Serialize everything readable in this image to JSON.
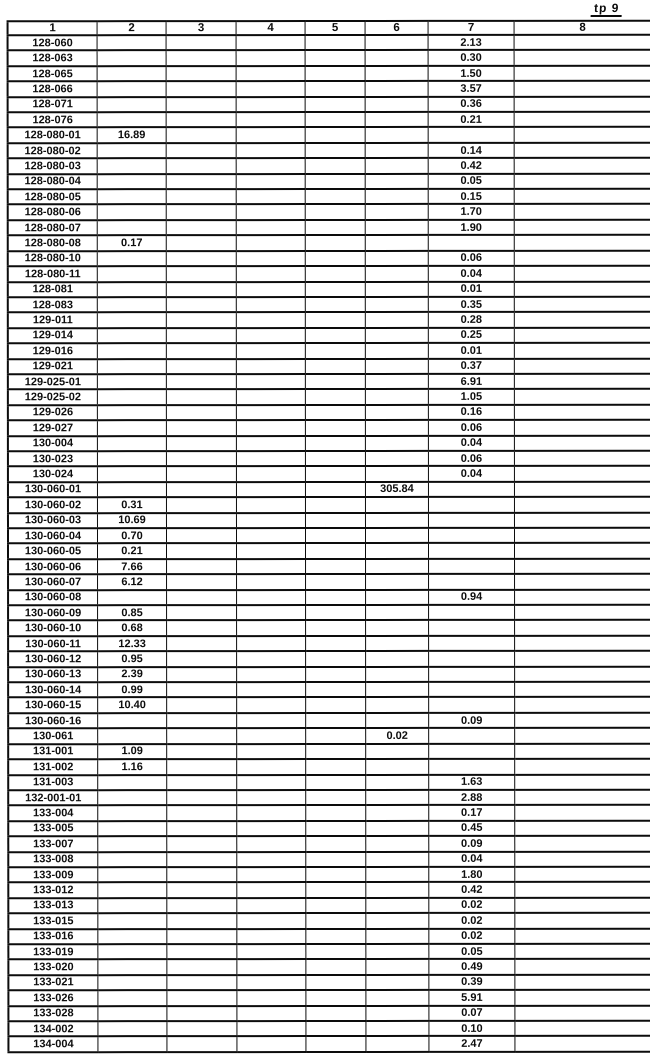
{
  "page_label": "tp 9",
  "table": {
    "columns": [
      "1",
      "2",
      "3",
      "4",
      "5",
      "6",
      "7",
      "8"
    ],
    "rows": [
      [
        "128-060",
        "",
        "",
        "",
        "",
        "",
        "2.13",
        ""
      ],
      [
        "128-063",
        "",
        "",
        "",
        "",
        "",
        "0.30",
        ""
      ],
      [
        "128-065",
        "",
        "",
        "",
        "",
        "",
        "1.50",
        ""
      ],
      [
        "128-066",
        "",
        "",
        "",
        "",
        "",
        "3.57",
        ""
      ],
      [
        "128-071",
        "",
        "",
        "",
        "",
        "",
        "0.36",
        ""
      ],
      [
        "128-076",
        "",
        "",
        "",
        "",
        "",
        "0.21",
        ""
      ],
      [
        "128-080-01",
        "16.89",
        "",
        "",
        "",
        "",
        "",
        ""
      ],
      [
        "128-080-02",
        "",
        "",
        "",
        "",
        "",
        "0.14",
        ""
      ],
      [
        "128-080-03",
        "",
        "",
        "",
        "",
        "",
        "0.42",
        ""
      ],
      [
        "128-080-04",
        "",
        "",
        "",
        "",
        "",
        "0.05",
        ""
      ],
      [
        "128-080-05",
        "",
        "",
        "",
        "",
        "",
        "0.15",
        ""
      ],
      [
        "128-080-06",
        "",
        "",
        "",
        "",
        "",
        "1.70",
        ""
      ],
      [
        "128-080-07",
        "",
        "",
        "",
        "",
        "",
        "1.90",
        ""
      ],
      [
        "128-080-08",
        "0.17",
        "",
        "",
        "",
        "",
        "",
        ""
      ],
      [
        "128-080-10",
        "",
        "",
        "",
        "",
        "",
        "0.06",
        ""
      ],
      [
        "128-080-11",
        "",
        "",
        "",
        "",
        "",
        "0.04",
        ""
      ],
      [
        "128-081",
        "",
        "",
        "",
        "",
        "",
        "0.01",
        ""
      ],
      [
        "128-083",
        "",
        "",
        "",
        "",
        "",
        "0.35",
        ""
      ],
      [
        "129-011",
        "",
        "",
        "",
        "",
        "",
        "0.28",
        ""
      ],
      [
        "129-014",
        "",
        "",
        "",
        "",
        "",
        "0.25",
        ""
      ],
      [
        "129-016",
        "",
        "",
        "",
        "",
        "",
        "0.01",
        ""
      ],
      [
        "129-021",
        "",
        "",
        "",
        "",
        "",
        "0.37",
        ""
      ],
      [
        "129-025-01",
        "",
        "",
        "",
        "",
        "",
        "6.91",
        ""
      ],
      [
        "129-025-02",
        "",
        "",
        "",
        "",
        "",
        "1.05",
        ""
      ],
      [
        "129-026",
        "",
        "",
        "",
        "",
        "",
        "0.16",
        ""
      ],
      [
        "129-027",
        "",
        "",
        "",
        "",
        "",
        "0.06",
        ""
      ],
      [
        "130-004",
        "",
        "",
        "",
        "",
        "",
        "0.04",
        ""
      ],
      [
        "130-023",
        "",
        "",
        "",
        "",
        "",
        "0.06",
        ""
      ],
      [
        "130-024",
        "",
        "",
        "",
        "",
        "",
        "0.04",
        ""
      ],
      [
        "130-060-01",
        "",
        "",
        "",
        "",
        "305.84",
        "",
        ""
      ],
      [
        "130-060-02",
        "0.31",
        "",
        "",
        "",
        "",
        "",
        ""
      ],
      [
        "130-060-03",
        "10.69",
        "",
        "",
        "",
        "",
        "",
        ""
      ],
      [
        "130-060-04",
        "0.70",
        "",
        "",
        "",
        "",
        "",
        ""
      ],
      [
        "130-060-05",
        "0.21",
        "",
        "",
        "",
        "",
        "",
        ""
      ],
      [
        "130-060-06",
        "7.66",
        "",
        "",
        "",
        "",
        "",
        ""
      ],
      [
        "130-060-07",
        "6.12",
        "",
        "",
        "",
        "",
        "",
        ""
      ],
      [
        "130-060-08",
        "",
        "",
        "",
        "",
        "",
        "0.94",
        ""
      ],
      [
        "130-060-09",
        "0.85",
        "",
        "",
        "",
        "",
        "",
        ""
      ],
      [
        "130-060-10",
        "0.68",
        "",
        "",
        "",
        "",
        "",
        ""
      ],
      [
        "130-060-11",
        "12.33",
        "",
        "",
        "",
        "",
        "",
        ""
      ],
      [
        "130-060-12",
        "0.95",
        "",
        "",
        "",
        "",
        "",
        ""
      ],
      [
        "130-060-13",
        "2.39",
        "",
        "",
        "",
        "",
        "",
        ""
      ],
      [
        "130-060-14",
        "0.99",
        "",
        "",
        "",
        "",
        "",
        ""
      ],
      [
        "130-060-15",
        "10.40",
        "",
        "",
        "",
        "",
        "",
        ""
      ],
      [
        "130-060-16",
        "",
        "",
        "",
        "",
        "",
        "0.09",
        ""
      ],
      [
        "130-061",
        "",
        "",
        "",
        "",
        "0.02",
        "",
        ""
      ],
      [
        "131-001",
        "1.09",
        "",
        "",
        "",
        "",
        "",
        ""
      ],
      [
        "131-002",
        "1.16",
        "",
        "",
        "",
        "",
        "",
        ""
      ],
      [
        "131-003",
        "",
        "",
        "",
        "",
        "",
        "1.63",
        ""
      ],
      [
        "132-001-01",
        "",
        "",
        "",
        "",
        "",
        "2.88",
        ""
      ],
      [
        "133-004",
        "",
        "",
        "",
        "",
        "",
        "0.17",
        ""
      ],
      [
        "133-005",
        "",
        "",
        "",
        "",
        "",
        "0.45",
        ""
      ],
      [
        "133-007",
        "",
        "",
        "",
        "",
        "",
        "0.09",
        ""
      ],
      [
        "133-008",
        "",
        "",
        "",
        "",
        "",
        "0.04",
        ""
      ],
      [
        "133-009",
        "",
        "",
        "",
        "",
        "",
        "1.80",
        ""
      ],
      [
        "133-012",
        "",
        "",
        "",
        "",
        "",
        "0.42",
        ""
      ],
      [
        "133-013",
        "",
        "",
        "",
        "",
        "",
        "0.02",
        ""
      ],
      [
        "133-015",
        "",
        "",
        "",
        "",
        "",
        "0.02",
        ""
      ],
      [
        "133-016",
        "",
        "",
        "",
        "",
        "",
        "0.02",
        ""
      ],
      [
        "133-019",
        "",
        "",
        "",
        "",
        "",
        "0.05",
        ""
      ],
      [
        "133-020",
        "",
        "",
        "",
        "",
        "",
        "0.49",
        ""
      ],
      [
        "133-021",
        "",
        "",
        "",
        "",
        "",
        "0.39",
        ""
      ],
      [
        "133-026",
        "",
        "",
        "",
        "",
        "",
        "5.91",
        ""
      ],
      [
        "133-028",
        "",
        "",
        "",
        "",
        "",
        "0.07",
        ""
      ],
      [
        "134-002",
        "",
        "",
        "",
        "",
        "",
        "0.10",
        ""
      ],
      [
        "134-004",
        "",
        "",
        "",
        "",
        "",
        "2.47",
        ""
      ]
    ]
  }
}
